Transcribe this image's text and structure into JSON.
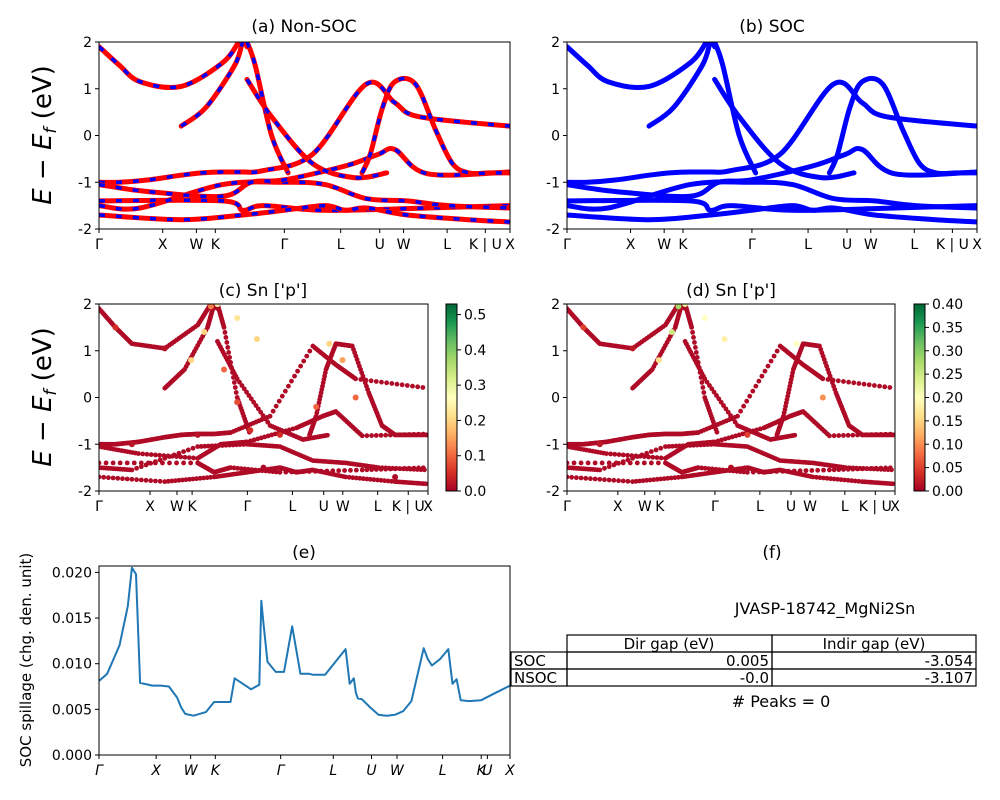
{
  "colors": {
    "nonsoc_main": "#ff0000",
    "nonsoc_dash": "#0000ff",
    "soc": "#0000ff",
    "spillage": "#1f77b4"
  },
  "kpath_labels": [
    "Γ",
    "X",
    "W",
    "K",
    "Γ",
    "L",
    "U",
    "W",
    "L",
    "K | U",
    "X"
  ],
  "spillage_labels": [
    "Γ",
    "X",
    "W",
    "K",
    "Γ",
    "L",
    "U",
    "W",
    "L",
    "K",
    "U",
    "X"
  ],
  "band_ylabel": "E − E_f (eV)",
  "panels": {
    "a": {
      "title": "(a) Non-SOC"
    },
    "b": {
      "title": "(b) SOC"
    },
    "c": {
      "title": "(c)  Sn ['p']",
      "colorbar_ticks": [
        "0.0",
        "0.1",
        "0.2",
        "0.3",
        "0.4",
        "0.5"
      ]
    },
    "d": {
      "title": "(d) Sn ['p']",
      "colorbar_ticks": [
        "0.00",
        "0.05",
        "0.10",
        "0.15",
        "0.20",
        "0.25",
        "0.30",
        "0.35",
        "0.40"
      ]
    },
    "e": {
      "title": "(e)"
    },
    "f": {
      "title": "(f)",
      "material": "JVASP-18742_MgNi2Sn",
      "peaks": "# Peaks = 0"
    }
  },
  "table": {
    "headers": [
      "Dir gap (eV)",
      "Indir gap (eV)"
    ],
    "rows": [
      {
        "label": "SOC",
        "dir": "0.005",
        "indir": "-3.054"
      },
      {
        "label": "NSOC",
        "dir": "-0.0",
        "indir": "-3.107"
      }
    ]
  },
  "chart_data": [
    {
      "type": "line",
      "title": "(a) Non-SOC",
      "ylabel": "E − E_f (eV)",
      "ylim": [
        -2,
        2
      ],
      "yticks": [
        -2,
        -1,
        0,
        1,
        2
      ],
      "x_ticks": [
        "Γ",
        "X",
        "W",
        "K",
        "Γ",
        "L",
        "U",
        "W",
        "L",
        "K | U",
        "X"
      ],
      "series": [
        {
          "x": [
            0,
            0.05,
            0.1,
            0.2,
            0.3,
            0.34
          ],
          "y": [
            1.9,
            1.5,
            1.15,
            1.05,
            1.55,
            2
          ]
        },
        {
          "x": [
            0,
            0.05,
            0.12,
            0.2,
            0.25,
            0.3,
            0.35,
            0.4,
            0.52,
            0.65,
            0.72,
            0.78,
            1
          ],
          "y": [
            -1.0,
            -1.0,
            -0.95,
            -0.85,
            -0.8,
            -0.78,
            -0.78,
            -0.75,
            -0.4,
            1.1,
            0.7,
            0.4,
            0.2
          ]
        },
        {
          "x": [
            0,
            0.3,
            0.35,
            0.4,
            0.55,
            0.8,
            1
          ],
          "y": [
            -1.4,
            -1.4,
            -1.6,
            -1.5,
            -1.6,
            -1.55,
            -1.5
          ]
        },
        {
          "x": [
            0,
            0.2,
            0.35,
            0.45,
            0.55,
            0.6,
            0.65,
            0.75,
            0.9,
            1
          ],
          "y": [
            -1.7,
            -1.8,
            -1.7,
            -1.6,
            -1.5,
            -1.6,
            -1.55,
            -1.7,
            -1.8,
            -1.85
          ]
        },
        {
          "x": [
            0,
            0.1,
            0.3,
            0.45,
            0.55,
            0.65,
            0.75,
            0.85,
            1
          ],
          "y": [
            -1.5,
            -1.55,
            -1.05,
            -1.0,
            -1.05,
            -1.35,
            -1.4,
            -1.5,
            -1.55
          ]
        },
        {
          "x": [
            0,
            0.12,
            0.3,
            0.37,
            0.45,
            0.6,
            0.68,
            0.72,
            0.8,
            1
          ],
          "y": [
            -1.05,
            -1.2,
            -1.3,
            -1.0,
            -0.95,
            -0.65,
            -0.4,
            -0.3,
            -0.82,
            -0.78
          ]
        },
        {
          "x": [
            0.2,
            0.26,
            0.33,
            0.35,
            0.36
          ],
          "y": [
            0.2,
            0.6,
            1.5,
            2.0,
            1.9
          ]
        },
        {
          "x": [
            0.36,
            0.38,
            0.42,
            0.46
          ],
          "y": [
            2.0,
            1.5,
            0.0,
            -0.8
          ]
        },
        {
          "x": [
            0.36,
            0.42,
            0.52,
            0.62,
            0.7
          ],
          "y": [
            1.2,
            0.4,
            -0.6,
            -0.9,
            -0.8
          ]
        },
        {
          "x": [
            0.64,
            0.66,
            0.69,
            0.72,
            0.77,
            0.82,
            0.86,
            0.9,
            0.95,
            1
          ],
          "y": [
            -0.8,
            -0.4,
            0.6,
            1.15,
            1.1,
            0.1,
            -0.6,
            -0.8,
            -0.8,
            -0.8
          ]
        }
      ]
    },
    {
      "type": "line",
      "title": "(b) SOC",
      "ylim": [
        -2,
        2
      ],
      "yticks": [
        -2,
        -1,
        0,
        1,
        2
      ],
      "x_ticks": [
        "Γ",
        "X",
        "W",
        "K",
        "Γ",
        "L",
        "U",
        "W",
        "L",
        "K | U",
        "X"
      ],
      "series": [
        {
          "x": [
            0,
            0.05,
            0.1,
            0.2,
            0.3,
            0.34
          ],
          "y": [
            1.9,
            1.5,
            1.15,
            1.05,
            1.55,
            2
          ]
        },
        {
          "x": [
            0,
            0.05,
            0.12,
            0.2,
            0.25,
            0.3,
            0.35,
            0.4,
            0.52,
            0.65,
            0.72,
            0.78,
            1
          ],
          "y": [
            -1.0,
            -1.0,
            -0.95,
            -0.85,
            -0.8,
            -0.78,
            -0.78,
            -0.75,
            -0.4,
            1.1,
            0.7,
            0.4,
            0.2
          ]
        },
        {
          "x": [
            0,
            0.3,
            0.35,
            0.4,
            0.55,
            0.8,
            1
          ],
          "y": [
            -1.4,
            -1.4,
            -1.6,
            -1.5,
            -1.6,
            -1.55,
            -1.5
          ]
        },
        {
          "x": [
            0,
            0.2,
            0.35,
            0.45,
            0.55,
            0.6,
            0.65,
            0.75,
            0.9,
            1
          ],
          "y": [
            -1.7,
            -1.8,
            -1.7,
            -1.6,
            -1.5,
            -1.6,
            -1.55,
            -1.7,
            -1.8,
            -1.85
          ]
        },
        {
          "x": [
            0,
            0.1,
            0.3,
            0.45,
            0.55,
            0.65,
            0.75,
            0.85,
            1
          ],
          "y": [
            -1.5,
            -1.55,
            -1.05,
            -1.0,
            -1.05,
            -1.35,
            -1.4,
            -1.5,
            -1.55
          ]
        },
        {
          "x": [
            0,
            0.12,
            0.3,
            0.37,
            0.45,
            0.6,
            0.68,
            0.72,
            0.8,
            1
          ],
          "y": [
            -1.05,
            -1.2,
            -1.3,
            -1.0,
            -0.95,
            -0.65,
            -0.4,
            -0.3,
            -0.82,
            -0.78
          ]
        },
        {
          "x": [
            0.2,
            0.26,
            0.33,
            0.35,
            0.36
          ],
          "y": [
            0.2,
            0.6,
            1.5,
            2.0,
            1.9
          ]
        },
        {
          "x": [
            0.36,
            0.38,
            0.42,
            0.46
          ],
          "y": [
            2.0,
            1.5,
            0.0,
            -0.8
          ]
        },
        {
          "x": [
            0.36,
            0.42,
            0.52,
            0.62,
            0.7
          ],
          "y": [
            1.2,
            0.4,
            -0.6,
            -0.9,
            -0.8
          ]
        },
        {
          "x": [
            0.64,
            0.66,
            0.69,
            0.72,
            0.77,
            0.82,
            0.86,
            0.9,
            0.95,
            1
          ],
          "y": [
            -0.8,
            -0.4,
            0.6,
            1.15,
            1.1,
            0.1,
            -0.6,
            -0.8,
            -0.8,
            -0.8
          ]
        }
      ]
    },
    {
      "type": "scatter",
      "title": "(c)  Sn ['p']",
      "ylabel": "E − E_f (eV)",
      "ylim": [
        -2,
        2
      ],
      "yticks": [
        -2,
        -1,
        0,
        1,
        2
      ],
      "colorbar_range": [
        0,
        0.53
      ],
      "x_ticks": [
        "Γ",
        "X",
        "W",
        "K",
        "Γ",
        "L",
        "U",
        "W",
        "L",
        "K | U",
        "X"
      ],
      "points": [
        {
          "x": 0.05,
          "y": 1.5,
          "c": 0.05
        },
        {
          "x": 0.2,
          "y": 1.05,
          "c": 0.02
        },
        {
          "x": 0.34,
          "y": 1.95,
          "c": 0.12
        },
        {
          "x": 0.36,
          "y": 2.0,
          "c": 0.25
        },
        {
          "x": 0.42,
          "y": 1.7,
          "c": 0.22
        },
        {
          "x": 0.48,
          "y": 1.25,
          "c": 0.2
        },
        {
          "x": 0.28,
          "y": 0.8,
          "c": 0.2
        },
        {
          "x": 0.32,
          "y": 1.4,
          "c": 0.2
        },
        {
          "x": 0.38,
          "y": 0.6,
          "c": 0.1
        },
        {
          "x": 0.42,
          "y": -0.1,
          "c": 0.08
        },
        {
          "x": 0.46,
          "y": -0.7,
          "c": 0.05
        },
        {
          "x": 0.7,
          "y": 1.15,
          "c": 0.2
        },
        {
          "x": 0.74,
          "y": 0.8,
          "c": 0.15
        },
        {
          "x": 0.78,
          "y": 0.0,
          "c": 0.1
        },
        {
          "x": 0.66,
          "y": -0.2,
          "c": 0.1
        },
        {
          "x": 0.55,
          "y": -0.8,
          "c": 0.05
        },
        {
          "x": 0.3,
          "y": -0.8,
          "c": 0.02
        },
        {
          "x": 0.1,
          "y": -1.0,
          "c": 0.02
        },
        {
          "x": 0.5,
          "y": -1.5,
          "c": 0.01
        },
        {
          "x": 0.9,
          "y": -1.7,
          "c": 0.01
        }
      ]
    },
    {
      "type": "scatter",
      "title": "(d) Sn ['p']",
      "ylim": [
        -2,
        2
      ],
      "yticks": [
        -2,
        -1,
        0,
        1,
        2
      ],
      "colorbar_range": [
        0,
        0.4
      ],
      "x_ticks": [
        "Γ",
        "X",
        "W",
        "K",
        "Γ",
        "L",
        "U",
        "W",
        "L",
        "K | U",
        "X"
      ],
      "points": [
        {
          "x": 0.05,
          "y": 1.5,
          "c": 0.05
        },
        {
          "x": 0.2,
          "y": 1.05,
          "c": 0.02
        },
        {
          "x": 0.34,
          "y": 1.95,
          "c": 0.28
        },
        {
          "x": 0.36,
          "y": 2.0,
          "c": 0.22
        },
        {
          "x": 0.42,
          "y": 1.7,
          "c": 0.2
        },
        {
          "x": 0.48,
          "y": 1.25,
          "c": 0.18
        },
        {
          "x": 0.28,
          "y": 0.8,
          "c": 0.16
        },
        {
          "x": 0.32,
          "y": 1.4,
          "c": 0.25
        },
        {
          "x": 0.7,
          "y": 1.15,
          "c": 0.2
        },
        {
          "x": 0.78,
          "y": 0.0,
          "c": 0.1
        },
        {
          "x": 0.55,
          "y": -0.8,
          "c": 0.05
        },
        {
          "x": 0.1,
          "y": -1.0,
          "c": 0.02
        },
        {
          "x": 0.5,
          "y": -1.5,
          "c": 0.01
        }
      ]
    },
    {
      "type": "line",
      "title": "(e)",
      "ylabel": "SOC spillage (chg. den. unit)",
      "ylim": [
        0,
        0.0207
      ],
      "yticks": [
        "0.000",
        "0.005",
        "0.010",
        "0.015",
        "0.020"
      ],
      "x_ticks": [
        "Γ",
        "X",
        "W",
        "K",
        "Γ",
        "L",
        "U",
        "W",
        "L",
        "K",
        "U",
        "X"
      ],
      "x": [
        0,
        0.02,
        0.05,
        0.07,
        0.08,
        0.09,
        0.1,
        0.13,
        0.15,
        0.17,
        0.19,
        0.2,
        0.21,
        0.23,
        0.26,
        0.28,
        0.3,
        0.32,
        0.33,
        0.37,
        0.39,
        0.395,
        0.4,
        0.41,
        0.43,
        0.45,
        0.47,
        0.49,
        0.5,
        0.51,
        0.52,
        0.55,
        0.6,
        0.61,
        0.62,
        0.625,
        0.63,
        0.64,
        0.66,
        0.68,
        0.7,
        0.72,
        0.74,
        0.76,
        0.79,
        0.8,
        0.81,
        0.83,
        0.85,
        0.86,
        0.87,
        0.88,
        0.9,
        0.93,
        0.96,
        1.0
      ],
      "y": [
        0.0081,
        0.0089,
        0.012,
        0.0163,
        0.0205,
        0.0198,
        0.0079,
        0.0076,
        0.0076,
        0.0075,
        0.0063,
        0.0052,
        0.0045,
        0.0043,
        0.0047,
        0.0058,
        0.0058,
        0.0058,
        0.0084,
        0.0072,
        0.0077,
        0.0169,
        0.0145,
        0.0102,
        0.0091,
        0.0091,
        0.0141,
        0.0089,
        0.0089,
        0.0089,
        0.0088,
        0.0088,
        0.0116,
        0.0078,
        0.0084,
        0.0068,
        0.0062,
        0.0061,
        0.0052,
        0.0044,
        0.0043,
        0.0044,
        0.0048,
        0.0059,
        0.0117,
        0.0105,
        0.0098,
        0.0105,
        0.0116,
        0.0078,
        0.0083,
        0.006,
        0.0059,
        0.006,
        0.0067,
        0.0076
      ]
    }
  ]
}
